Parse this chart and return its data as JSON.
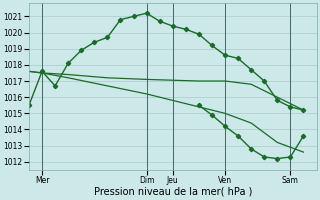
{
  "background_color": "#cce8e8",
  "grid_color": "#aacccc",
  "line_color": "#1a6b2a",
  "xlim": [
    0,
    11
  ],
  "ylim": [
    1011.5,
    1021.8
  ],
  "yticks": [
    1012,
    1013,
    1014,
    1015,
    1016,
    1017,
    1018,
    1019,
    1020,
    1021
  ],
  "xlabel": "Pression niveau de la mer( hPa )",
  "vlines_x": [
    0.5,
    4.5,
    5.5,
    7.5,
    10.0
  ],
  "xtick_positions": [
    0.5,
    4.5,
    5.5,
    7.5,
    10.0
  ],
  "xtick_labels": [
    "Mer",
    "Dim",
    "Jeu",
    "Ven",
    "Sam"
  ],
  "series1_x": [
    0.0,
    0.5,
    1.0,
    1.5,
    2.0,
    2.5,
    3.0,
    3.5,
    4.0,
    4.5,
    5.0,
    5.5,
    6.0,
    6.5,
    7.0,
    7.5,
    8.0,
    8.5,
    9.0,
    9.5,
    10.0,
    10.5
  ],
  "series1_y": [
    1015.5,
    1017.6,
    1016.7,
    1018.1,
    1018.9,
    1019.4,
    1019.7,
    1020.8,
    1021.0,
    1021.2,
    1020.7,
    1020.4,
    1020.2,
    1019.9,
    1019.2,
    1018.6,
    1018.4,
    1017.7,
    1017.0,
    1015.8,
    1015.4,
    1015.2
  ],
  "series2_x": [
    0.0,
    0.5,
    1.5,
    3.0,
    4.5,
    5.5,
    6.5,
    7.5,
    8.5,
    9.5,
    10.5
  ],
  "series2_y": [
    1017.6,
    1017.5,
    1017.4,
    1017.2,
    1017.1,
    1017.05,
    1017.0,
    1017.0,
    1016.8,
    1016.0,
    1015.2
  ],
  "series3_x": [
    0.0,
    0.5,
    1.5,
    3.0,
    4.5,
    5.5,
    6.5,
    7.5,
    8.5,
    9.5,
    10.5
  ],
  "series3_y": [
    1017.6,
    1017.5,
    1017.2,
    1016.7,
    1016.2,
    1015.8,
    1015.4,
    1015.0,
    1014.4,
    1013.2,
    1012.6
  ],
  "series4_x": [
    6.5,
    7.0,
    7.5,
    8.0,
    8.5,
    9.0,
    9.5,
    10.0,
    10.5
  ],
  "series4_y": [
    1015.5,
    1014.9,
    1014.2,
    1013.6,
    1012.8,
    1012.3,
    1012.2,
    1012.3,
    1013.6
  ]
}
